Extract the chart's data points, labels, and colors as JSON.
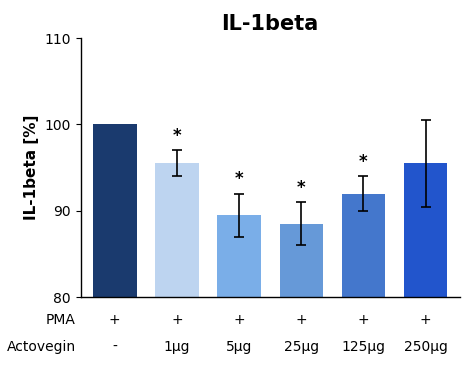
{
  "title": "IL-1beta",
  "ylabel": "IL-1beta [%]",
  "ylim": [
    80,
    110
  ],
  "yticks": [
    80,
    90,
    100,
    110
  ],
  "pma_labels": [
    "+",
    "+",
    "+",
    "+",
    "+",
    "+"
  ],
  "actovegin_labels": [
    "-",
    "1μg",
    "5μg",
    "25μg",
    "125μg",
    "250μg"
  ],
  "values": [
    100.0,
    95.5,
    89.5,
    88.5,
    92.0,
    95.5
  ],
  "errors": [
    0.0,
    1.5,
    2.5,
    2.5,
    2.0,
    5.0
  ],
  "bar_colors": [
    "#1a3a6e",
    "#bdd4f0",
    "#7aaee8",
    "#6699d8",
    "#4477cc",
    "#2255cc"
  ],
  "significant": [
    false,
    true,
    true,
    true,
    true,
    false
  ],
  "bar_width": 0.7,
  "title_fontsize": 15,
  "axis_fontsize": 11,
  "tick_fontsize": 10,
  "label_fontsize": 10,
  "background_color": "#ffffff"
}
